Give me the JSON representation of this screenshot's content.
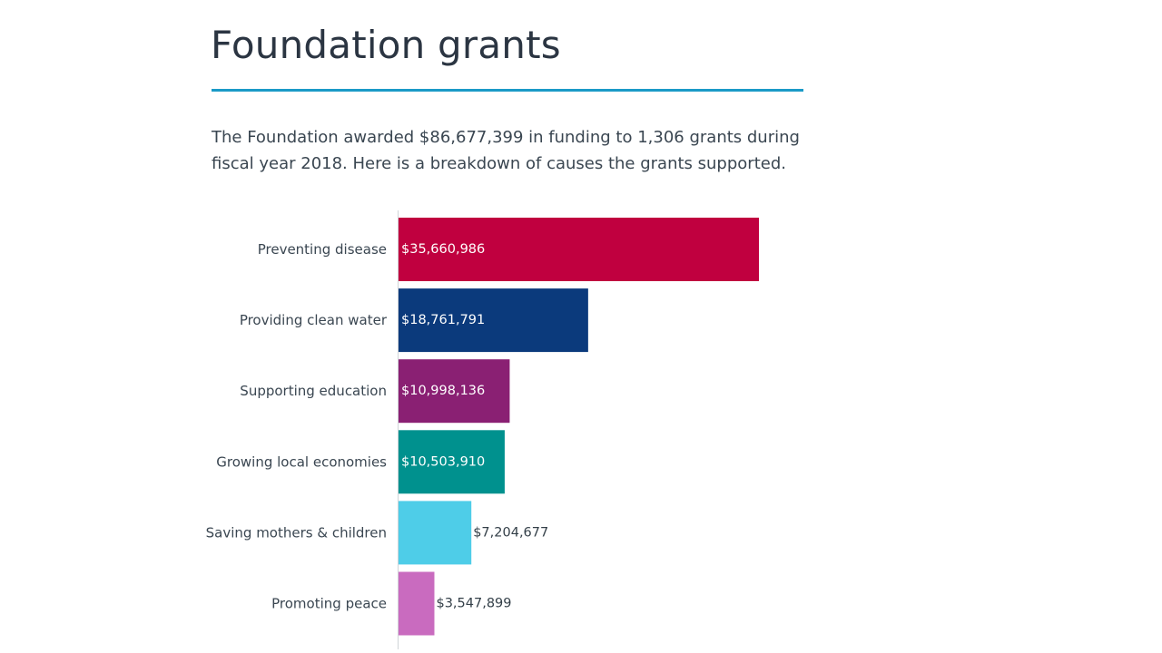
{
  "page": {
    "title": "Foundation grants",
    "intro": "The Foundation awarded $86,677,399 in funding to 1,306 grants during fiscal year 2018. Here is a breakdown of causes the grants supported."
  },
  "colors": {
    "title_rule": "#1b9ac7",
    "axis": "#d0d4d8"
  },
  "chart_data": {
    "type": "bar",
    "orientation": "horizontal",
    "title": "",
    "xlabel": "",
    "ylabel": "",
    "categories": [
      "Preventing disease",
      "Providing clean water",
      "Supporting education",
      "Growing local economies",
      "Saving mothers & children",
      "Promoting peace"
    ],
    "values": [
      35660986,
      18761791,
      10998136,
      10503910,
      7204677,
      3547899
    ],
    "value_labels": [
      "$35,660,986",
      "$18,761,791",
      "$10,998,136",
      "$10,503,910",
      "$7,204,677",
      "$3,547,899"
    ],
    "colors": [
      "#c0003f",
      "#0b3a7c",
      "#8a2073",
      "#00918e",
      "#4ecde8",
      "#c96bbf"
    ],
    "label_colors": [
      "#ffffff",
      "#ffffff",
      "#ffffff",
      "#ffffff",
      "#333f48",
      "#333f48"
    ],
    "xlim": [
      0,
      35660986
    ],
    "grid": false,
    "legend": "none"
  }
}
